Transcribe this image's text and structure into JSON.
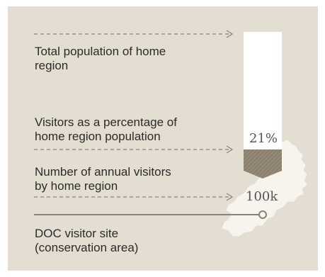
{
  "legend": {
    "total_population_label_line1": "Total population of home",
    "total_population_label_line2": "region",
    "percentage_label_line1": "Visitors as a percentage of",
    "percentage_label_line2": "home region population",
    "visitors_label_line1": "Number of annual visitors",
    "visitors_label_line2": "by home region",
    "site_label_line1": "DOC visitor site",
    "site_label_line2": "(conservation area)"
  },
  "example": {
    "percentage_text": "21%",
    "percentage_value": 21,
    "visitors_text": "100k"
  },
  "colors": {
    "background": "#e4ddd1",
    "bar_empty": "#ffffff",
    "bar_filled": "#8b7f6d",
    "region_shape": "#f7f4ee",
    "lines": "#8b8275",
    "text": "#2b2b2b"
  }
}
